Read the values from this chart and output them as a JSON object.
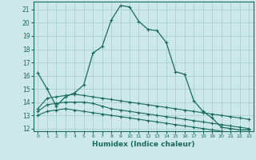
{
  "xlabel": "Humidex (Indice chaleur)",
  "bg_color": "#cce8e8",
  "grid_color": "#aad0d0",
  "line_color": "#1a6b5a",
  "x": [
    0,
    1,
    2,
    3,
    4,
    5,
    6,
    7,
    8,
    9,
    10,
    11,
    12,
    13,
    14,
    15,
    16,
    17,
    18,
    19,
    20,
    21,
    22,
    23
  ],
  "series": [
    [
      16.2,
      15.0,
      13.7,
      14.4,
      14.7,
      15.3,
      17.7,
      18.2,
      20.2,
      21.3,
      21.2,
      20.1,
      19.5,
      19.4,
      18.5,
      16.3,
      16.1,
      14.1,
      13.3,
      12.8,
      12.1,
      12.0,
      11.9,
      11.9
    ],
    [
      13.5,
      14.3,
      14.4,
      14.5,
      14.6,
      14.5,
      14.4,
      14.3,
      14.2,
      14.1,
      14.0,
      13.9,
      13.8,
      13.7,
      13.6,
      13.5,
      13.4,
      13.3,
      13.2,
      13.1,
      13.0,
      12.9,
      12.8,
      12.7
    ],
    [
      13.3,
      13.8,
      13.9,
      14.0,
      14.0,
      14.0,
      13.9,
      13.7,
      13.5,
      13.4,
      13.3,
      13.2,
      13.1,
      13.0,
      12.9,
      12.8,
      12.7,
      12.6,
      12.5,
      12.4,
      12.3,
      12.2,
      12.1,
      12.0
    ],
    [
      13.0,
      13.3,
      13.4,
      13.5,
      13.4,
      13.3,
      13.2,
      13.1,
      13.0,
      12.9,
      12.8,
      12.7,
      12.6,
      12.5,
      12.4,
      12.3,
      12.2,
      12.1,
      12.0,
      11.9,
      11.8,
      11.7,
      11.6,
      11.5
    ]
  ],
  "ylim": [
    11.8,
    21.6
  ],
  "xlim": [
    -0.5,
    23.5
  ],
  "yticks": [
    12,
    13,
    14,
    15,
    16,
    17,
    18,
    19,
    20,
    21
  ],
  "xticks": [
    0,
    1,
    2,
    3,
    4,
    5,
    6,
    7,
    8,
    9,
    10,
    11,
    12,
    13,
    14,
    15,
    16,
    17,
    18,
    19,
    20,
    21,
    22,
    23
  ]
}
